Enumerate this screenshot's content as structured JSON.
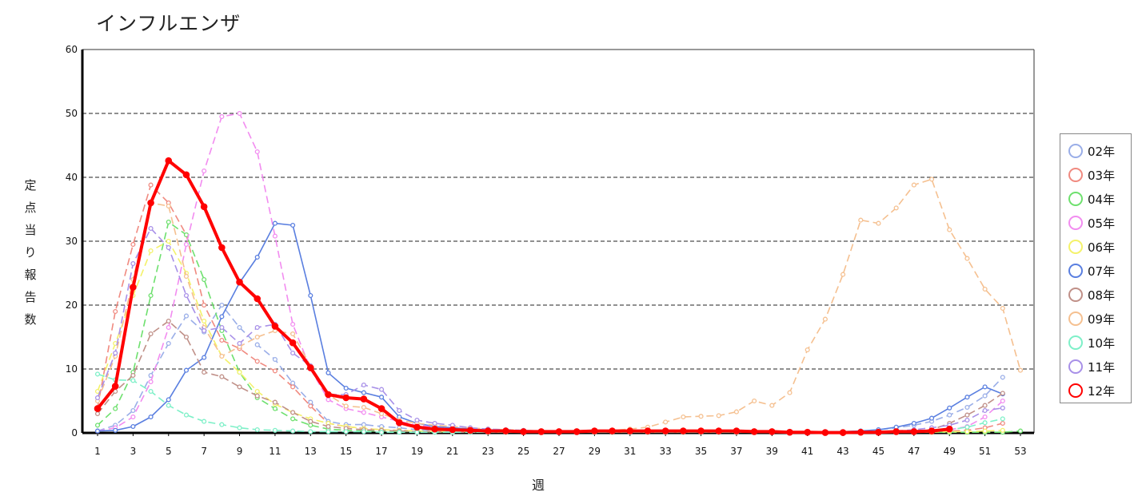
{
  "chart_data": {
    "type": "line",
    "title": "インフルエンザ",
    "xlabel": "週",
    "ylabel": "定点当り報告数",
    "x": [
      1,
      2,
      3,
      4,
      5,
      6,
      7,
      8,
      9,
      10,
      11,
      12,
      13,
      14,
      15,
      16,
      17,
      18,
      19,
      20,
      21,
      22,
      23,
      24,
      25,
      26,
      27,
      28,
      29,
      30,
      31,
      32,
      33,
      34,
      35,
      36,
      37,
      38,
      39,
      40,
      41,
      42,
      43,
      44,
      45,
      46,
      47,
      48,
      49,
      50,
      51,
      52,
      53
    ],
    "xticks": [
      "1",
      "3",
      "5",
      "7",
      "9",
      "11",
      "13",
      "15",
      "17",
      "19",
      "21",
      "23",
      "25",
      "27",
      "29",
      "31",
      "33",
      "35",
      "37",
      "39",
      "41",
      "43",
      "45",
      "47",
      "49",
      "51",
      "53"
    ],
    "yticks": [
      "0",
      "10",
      "20",
      "30",
      "40",
      "50",
      "60"
    ],
    "xlim": [
      1,
      53
    ],
    "ylim": [
      0,
      60
    ],
    "grid": "horizontal-dashed",
    "legend_position": "right",
    "series": [
      {
        "name": "02年",
        "color": "#9aaee8",
        "dashed": true,
        "values": [
          0.3,
          1.2,
          3.5,
          9,
          14,
          18.3,
          15.8,
          20,
          16.5,
          13.8,
          11.5,
          7.8,
          4.8,
          1.8,
          1.3,
          1.3,
          1.0,
          0.8,
          0.5,
          0.4,
          0.3,
          0.2,
          0.2,
          0.2,
          0.1,
          0.1,
          0.1,
          0.1,
          0.1,
          0.1,
          0.1,
          0.1,
          0.1,
          0.1,
          0.1,
          0.1,
          0.1,
          0.1,
          0.1,
          0.1,
          0.1,
          0.1,
          0.2,
          0.3,
          0.5,
          0.8,
          1.2,
          1.8,
          2.8,
          4,
          5.8,
          8.7,
          null
        ]
      },
      {
        "name": "03年",
        "color": "#f08a80",
        "dashed": true,
        "values": [
          4,
          19,
          29.5,
          38.8,
          36,
          31,
          20,
          14.5,
          13.2,
          11.2,
          9.7,
          7.2,
          4.2,
          1.5,
          1.0,
          0.7,
          0.5,
          0.4,
          0.3,
          0.2,
          0.2,
          0.2,
          0.1,
          0.1,
          0.1,
          0.1,
          0.1,
          0.1,
          0.1,
          0.1,
          0.1,
          0.1,
          0.1,
          0.1,
          0.1,
          0.1,
          0.1,
          0.1,
          0.1,
          0.1,
          0.1,
          0.1,
          0.1,
          0.1,
          0.1,
          0.1,
          0.2,
          0.2,
          0.3,
          0.4,
          0.8,
          1.5,
          null
        ]
      },
      {
        "name": "04年",
        "color": "#6ee06e",
        "dashed": true,
        "values": [
          1.2,
          3.8,
          9.5,
          21.5,
          33,
          31,
          24,
          16,
          9.5,
          5.5,
          3.8,
          2.2,
          1.2,
          0.6,
          0.4,
          0.3,
          0.3,
          0.2,
          0.2,
          0.1,
          0.1,
          0.1,
          0.1,
          0.1,
          0.1,
          0.1,
          0.1,
          0.1,
          0.1,
          0.1,
          0.1,
          0.1,
          0.1,
          0.1,
          0.1,
          0.1,
          0.1,
          0.1,
          0.1,
          0.1,
          0.1,
          0.1,
          0.1,
          0.1,
          0.1,
          0.1,
          0.1,
          0.1,
          0.1,
          0.1,
          0.1,
          0.1,
          0.3
        ]
      },
      {
        "name": "05年",
        "color": "#f28cf0",
        "dashed": true,
        "values": [
          0.3,
          0.8,
          2.5,
          8,
          16.5,
          29.5,
          41,
          49.5,
          50,
          44,
          30.8,
          17,
          10,
          5.2,
          3.8,
          3.2,
          2.5,
          1.8,
          1.2,
          0.9,
          0.7,
          0.5,
          0.4,
          0.3,
          0.2,
          0.2,
          0.2,
          0.1,
          0.1,
          0.1,
          0.1,
          0.1,
          0.1,
          0.1,
          0.1,
          0.1,
          0.1,
          0.1,
          0.1,
          0.1,
          0.1,
          0.1,
          0.1,
          0.1,
          0.1,
          0.1,
          0.2,
          0.3,
          0.5,
          1,
          2.5,
          5,
          null
        ]
      },
      {
        "name": "06年",
        "color": "#f4f26a",
        "dashed": true,
        "values": [
          6.5,
          14,
          21.5,
          28.5,
          30,
          25,
          17.5,
          12,
          9.5,
          6.5,
          4.5,
          3.2,
          2.2,
          1.5,
          1.0,
          0.7,
          0.5,
          0.4,
          0.3,
          0.2,
          0.2,
          0.2,
          0.1,
          0.1,
          0.1,
          0.1,
          0.1,
          0.1,
          0.1,
          0.1,
          0.1,
          0.1,
          0.1,
          0.1,
          0.1,
          0.1,
          0.1,
          0.1,
          0.1,
          0.1,
          0.1,
          0.1,
          0.1,
          0.1,
          0.1,
          0.1,
          0.1,
          0.1,
          0.2,
          0.2,
          0.3,
          0.4,
          null
        ]
      },
      {
        "name": "07年",
        "color": "#5a7fe0",
        "dashed": false,
        "values": [
          0.3,
          0.4,
          1.0,
          2.5,
          5.2,
          9.8,
          11.8,
          18.2,
          23.5,
          27.5,
          32.8,
          32.5,
          21.5,
          9.4,
          7,
          6.3,
          5.6,
          2.5,
          1.5,
          1.0,
          0.8,
          0.6,
          0.5,
          0.4,
          0.3,
          0.3,
          0.2,
          0.2,
          0.2,
          0.2,
          0.2,
          0.2,
          0.2,
          0.2,
          0.2,
          0.2,
          0.2,
          0.2,
          0.2,
          0.2,
          0.2,
          0.2,
          0.2,
          0.3,
          0.5,
          0.9,
          1.5,
          2.3,
          3.9,
          5.6,
          7.2,
          6.1,
          null
        ]
      },
      {
        "name": "08年",
        "color": "#c09088",
        "dashed": true,
        "values": [
          3,
          6.5,
          9,
          15.5,
          17.5,
          15,
          9.5,
          8.8,
          7.2,
          5.8,
          4.8,
          3.2,
          1.8,
          1.0,
          0.7,
          0.5,
          0.4,
          0.3,
          0.2,
          0.2,
          0.1,
          0.1,
          0.1,
          0.1,
          0.1,
          0.1,
          0.1,
          0.1,
          0.1,
          0.1,
          0.1,
          0.1,
          0.1,
          0.1,
          0.1,
          0.1,
          0.1,
          0.1,
          0.1,
          0.1,
          0.1,
          0.1,
          0.1,
          0.1,
          0.1,
          0.2,
          0.3,
          0.5,
          1.5,
          2.8,
          4.3,
          6.2,
          null
        ]
      },
      {
        "name": "09年",
        "color": "#f5c090",
        "dashed": true,
        "values": [
          5,
          12,
          24,
          36,
          35.5,
          24.5,
          16.5,
          12,
          13.5,
          15,
          16,
          15.5,
          10.5,
          6,
          4.2,
          4,
          3,
          2,
          1.5,
          1.2,
          1,
          0.8,
          0.6,
          0.5,
          0.4,
          0.3,
          0.3,
          0.3,
          0.4,
          0.4,
          0.6,
          0.9,
          1.7,
          2.5,
          2.6,
          2.7,
          3.3,
          5,
          4.3,
          6.3,
          13,
          17.8,
          24.8,
          33.3,
          32.8,
          35.2,
          38.8,
          39.7,
          31.8,
          27.3,
          22.5,
          19.5,
          9.8
        ]
      },
      {
        "name": "10年",
        "color": "#7ef0c8",
        "dashed": true,
        "values": [
          9.2,
          8.3,
          8.2,
          6.5,
          4.3,
          2.8,
          1.8,
          1.3,
          0.8,
          0.5,
          0.4,
          0.3,
          0.2,
          0.2,
          0.2,
          0.2,
          0.1,
          0.1,
          0.1,
          0.1,
          0.1,
          0.1,
          0.1,
          0.1,
          0.1,
          0.1,
          0.1,
          0.1,
          0.1,
          0.1,
          0.1,
          0.1,
          0.1,
          0.1,
          0.1,
          0.1,
          0.1,
          0.1,
          0.1,
          0.1,
          0.1,
          0.1,
          0.1,
          0.1,
          0.1,
          0.1,
          0.2,
          0.3,
          0.5,
          0.9,
          1.6,
          2.2,
          null
        ]
      },
      {
        "name": "11年",
        "color": "#a890e8",
        "dashed": true,
        "values": [
          5.5,
          12.5,
          26.5,
          32,
          29,
          21.5,
          16,
          16.5,
          14,
          16.5,
          17,
          12.5,
          10.5,
          6,
          6,
          7.5,
          6.8,
          3.5,
          2,
          1.5,
          1.2,
          0.8,
          0.6,
          0.5,
          0.4,
          0.3,
          0.3,
          0.2,
          0.2,
          0.2,
          0.2,
          0.2,
          0.2,
          0.2,
          0.2,
          0.2,
          0.2,
          0.2,
          0.2,
          0.2,
          0.2,
          0.2,
          0.2,
          0.2,
          0.2,
          0.3,
          0.5,
          0.8,
          1.2,
          2,
          3.5,
          3.9,
          null
        ]
      },
      {
        "name": "12年",
        "color": "#ff0000",
        "dashed": false,
        "bold": true,
        "values": [
          3.8,
          7.3,
          22.8,
          36,
          42.6,
          40.4,
          35.4,
          29,
          23.6,
          21,
          16.7,
          14.1,
          10.2,
          6,
          5.5,
          5.3,
          3.8,
          1.6,
          0.9,
          0.6,
          0.5,
          0.4,
          0.3,
          0.3,
          0.2,
          0.2,
          0.2,
          0.2,
          0.3,
          0.3,
          0.3,
          0.3,
          0.3,
          0.3,
          0.3,
          0.3,
          0.3,
          0.2,
          0.2,
          0.1,
          0.1,
          0.05,
          0.05,
          0.1,
          0.1,
          0.2,
          0.2,
          0.3,
          0.6,
          null,
          null,
          null,
          null
        ]
      }
    ]
  }
}
